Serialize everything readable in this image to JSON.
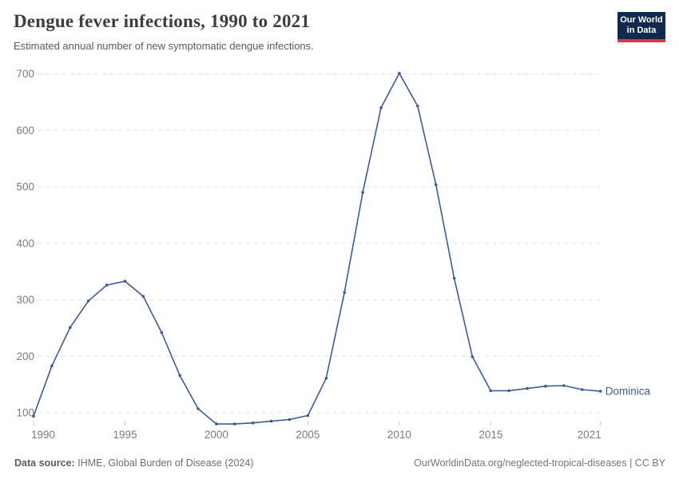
{
  "header": {
    "title": "Dengue fever infections, 1990 to 2021",
    "subtitle": "Estimated annual number of new symptomatic dengue infections.",
    "logo": {
      "line1": "Our World",
      "line2": "in Data",
      "bg_color": "#12294e",
      "accent_color": "#d8393e"
    }
  },
  "chart_data": {
    "type": "line",
    "title": "Dengue fever infections, 1990 to 2021",
    "xlabel": "",
    "ylabel": "",
    "x_range": [
      1990,
      2021
    ],
    "y_ticks": [
      100,
      200,
      300,
      400,
      500,
      600,
      700
    ],
    "x_ticks": [
      1990,
      1995,
      2000,
      2005,
      2010,
      2015,
      2021
    ],
    "grid": "horizontal-dashed",
    "legend_position": "end-of-line-label",
    "end_label": "Dominica",
    "series": [
      {
        "name": "Dominica",
        "color": "#3d5c96",
        "x": [
          1990,
          1991,
          1992,
          1993,
          1994,
          1995,
          1996,
          1997,
          1998,
          1999,
          2000,
          2001,
          2002,
          2003,
          2004,
          2005,
          2006,
          2007,
          2008,
          2009,
          2010,
          2011,
          2012,
          2013,
          2014,
          2015,
          2016,
          2017,
          2018,
          2019,
          2020,
          2021
        ],
        "values": [
          94,
          183,
          251,
          298,
          326,
          333,
          306,
          242,
          166,
          107,
          80,
          80,
          82,
          85,
          88,
          95,
          161,
          313,
          490,
          640,
          701,
          643,
          504,
          338,
          199,
          139,
          139,
          143,
          147,
          148,
          141,
          138
        ]
      }
    ]
  },
  "footer": {
    "source_label": "Data source:",
    "source_text": "IHME, Global Burden of Disease (2024)",
    "attribution": "OurWorldinData.org/neglected-tropical-diseases | CC BY"
  }
}
